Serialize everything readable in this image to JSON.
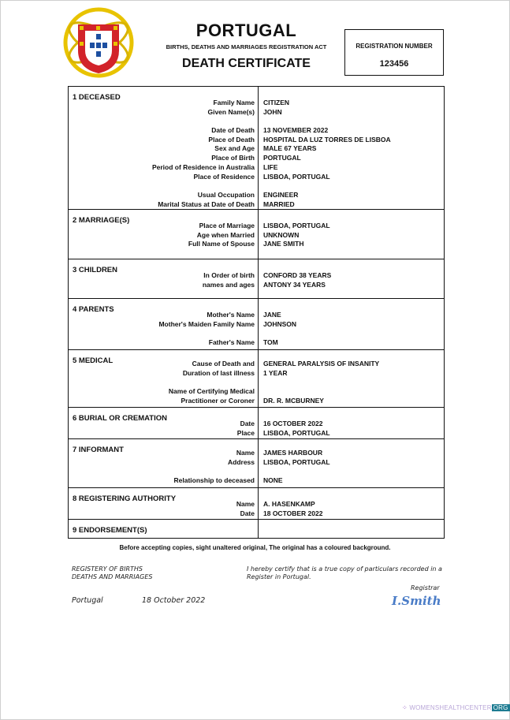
{
  "header": {
    "country": "PORTUGAL",
    "act": "BIRTHS, DEATHS AND MARRIAGES REGISTRATION ACT",
    "doc_title": "DEATH CERTIFICATE",
    "emblem": "portugal-coat-of-arms"
  },
  "registration": {
    "label": "REGISTRATION NUMBER",
    "number": "123456"
  },
  "sections": [
    {
      "title": "1 DECEASED",
      "lines": [
        {
          "label": "Family Name",
          "value": "CITIZEN"
        },
        {
          "label": "Given Name(s)",
          "value": "JOHN"
        },
        {
          "label": "",
          "value": ""
        },
        {
          "label": "Date of Death",
          "value": "13 NOVEMBER 2022"
        },
        {
          "label": "Place of Death",
          "value": "HOSPITAL DA LUZ TORRES DE LISBOA"
        },
        {
          "label": "Sex and Age",
          "value": "MALE 67 YEARS"
        },
        {
          "label": "Place of Birth",
          "value": "PORTUGAL"
        },
        {
          "label": "Period of Residence in Australia",
          "value": "LIFE"
        },
        {
          "label": "Place of Residence",
          "value": "LISBOA, PORTUGAL"
        },
        {
          "label": "",
          "value": ""
        },
        {
          "label": "Usual Occupation",
          "value": "ENGINEER"
        },
        {
          "label": "Marital Status at Date of Death",
          "value": "MARRIED"
        }
      ]
    },
    {
      "title": "2 MARRIAGE(S)",
      "lines": [
        {
          "label": "Place of Marriage",
          "value": "LISBOA, PORTUGAL"
        },
        {
          "label": "Age when Married",
          "value": "UNKNOWN"
        },
        {
          "label": "Full Name of Spouse",
          "value": "JANE SMITH"
        }
      ]
    },
    {
      "title": "3 CHILDREN",
      "lines": [
        {
          "label": "In Order of birth",
          "value": "CONFORD 38 YEARS"
        },
        {
          "label": "names and ages",
          "value": "ANTONY 34 YEARS"
        }
      ]
    },
    {
      "title": "4 PARENTS",
      "lines": [
        {
          "label": "Mother's Name",
          "value": "JANE"
        },
        {
          "label": "Mother's Maiden Family Name",
          "value": "JOHNSON"
        },
        {
          "label": "",
          "value": ""
        },
        {
          "label": "Father's Name",
          "value": "TOM"
        }
      ]
    },
    {
      "title": "5 MEDICAL",
      "lines": [
        {
          "label": "Cause of Death and",
          "value": "GENERAL PARALYSIS OF INSANITY"
        },
        {
          "label": "Duration of last illness",
          "value": "1 YEAR"
        },
        {
          "label": "",
          "value": ""
        },
        {
          "label": "Name of Certifying Medical",
          "value": ""
        },
        {
          "label": "Practitioner or Coroner",
          "value": "DR. R. MCBURNEY"
        }
      ]
    },
    {
      "title": "6 BURIAL OR CREMATION",
      "lines": [
        {
          "label": "Date",
          "value": "16 OCTOBER 2022"
        },
        {
          "label": "Place",
          "value": "LISBOA, PORTUGAL"
        }
      ]
    },
    {
      "title": "7 INFORMANT",
      "lines": [
        {
          "label": "Name",
          "value": "JAMES HARBOUR"
        },
        {
          "label": "Address",
          "value": "LISBOA, PORTUGAL"
        },
        {
          "label": "",
          "value": ""
        },
        {
          "label": "Relationship to deceased",
          "value": "NONE"
        }
      ]
    },
    {
      "title": "8 REGISTERING AUTHORITY",
      "lines": [
        {
          "label": "Name",
          "value": "A. HASENKAMP"
        },
        {
          "label": "Date",
          "value": "18 OCTOBER 2022"
        }
      ]
    },
    {
      "title": "9 ENDORSEMENT(S)",
      "lines": []
    }
  ],
  "footer": {
    "note": "Before accepting copies, sight unaltered original, The original has a coloured background.",
    "registry_line1": "REGISTERY OF BIRTHS",
    "registry_line2": "DEATHS AND MARRIAGES",
    "certify_line1": "I hereby certify that is a true copy of particulars recorded in a",
    "certify_line2": "Register in Portugal.",
    "registrar_label": "Registrar",
    "place": "Portugal",
    "date": "18 October 2022",
    "signature": "I.Smith"
  },
  "watermark": {
    "text": "WOMENSHEALTHCENTER",
    "suffix": "ORG"
  }
}
